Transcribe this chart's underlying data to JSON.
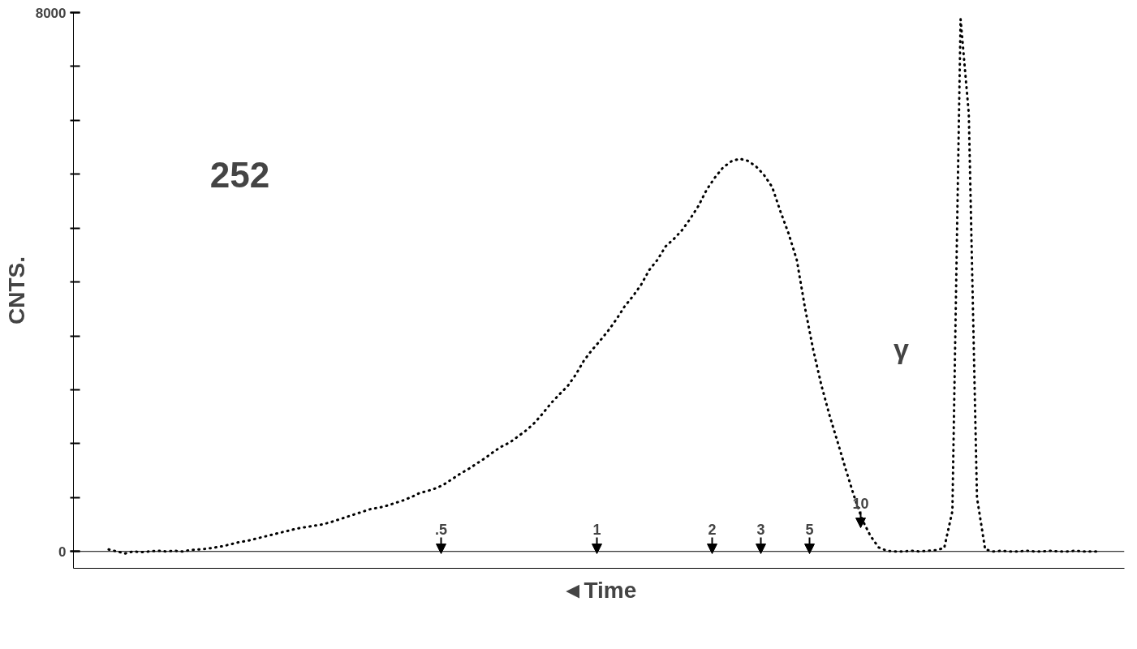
{
  "chart_data": {
    "type": "line",
    "xlabel": "◄Time",
    "ylabel": "CNTS.",
    "categories": [
      null,
      null,
      null,
      null,
      null,
      null,
      null,
      null,
      null,
      null,
      null,
      null,
      null,
      null,
      null,
      null,
      null,
      null,
      null,
      null,
      null,
      null,
      null,
      null,
      null,
      null,
      null,
      null,
      null,
      null,
      null,
      null,
      null,
      null,
      null,
      null,
      null,
      null,
      null,
      null,
      null,
      null,
      null,
      null,
      null,
      null,
      null,
      null,
      null,
      null,
      null,
      null,
      null,
      null,
      null,
      null,
      null,
      null,
      null,
      null,
      null,
      null,
      null,
      null,
      null,
      null,
      null,
      null,
      null,
      null,
      null,
      null,
      null,
      null,
      null,
      null,
      null,
      null,
      null,
      null,
      null,
      null,
      null,
      null,
      null,
      null,
      null,
      null,
      null,
      null,
      null,
      null,
      null,
      null,
      null,
      null,
      null,
      null,
      null,
      null,
      null,
      null,
      null,
      null,
      null,
      null,
      null,
      null,
      null,
      null,
      null,
      null,
      null,
      null,
      null,
      null,
      null,
      null,
      null,
      null,
      null,
      null
    ],
    "values": [
      30,
      0,
      -30,
      0,
      -10,
      0,
      10,
      0,
      10,
      0,
      20,
      30,
      40,
      60,
      80,
      110,
      140,
      160,
      190,
      220,
      250,
      280,
      310,
      340,
      360,
      380,
      400,
      430,
      470,
      510,
      550,
      590,
      630,
      650,
      680,
      720,
      760,
      810,
      870,
      900,
      940,
      1000,
      1080,
      1160,
      1230,
      1310,
      1390,
      1480,
      1560,
      1620,
      1710,
      1800,
      1910,
      2050,
      2200,
      2330,
      2450,
      2620,
      2830,
      2990,
      3130,
      3280,
      3450,
      3640,
      3790,
      3960,
      4180,
      4330,
      4530,
      4640,
      4770,
      4940,
      5130,
      5370,
      5550,
      5700,
      5790,
      5830,
      5800,
      5720,
      5590,
      5410,
      5050,
      4720,
      4330,
      3620,
      3000,
      2470,
      2020,
      1620,
      1210,
      820,
      470,
      230,
      60,
      10,
      0,
      0,
      10,
      0,
      10,
      20,
      50,
      600,
      7900,
      6500,
      800,
      30,
      0,
      10,
      0,
      0,
      10,
      0,
      0,
      10,
      0,
      0,
      10,
      0,
      0,
      0
    ],
    "color": "#000000",
    "line_style": "dotted",
    "grid": false,
    "ylim": [
      -250,
      8000
    ],
    "yticks": [
      0,
      8000
    ],
    "ref_lines": [
      {
        "axis": "y",
        "value": 0,
        "label": null
      }
    ],
    "annotations": [
      "252",
      ".5",
      "1",
      "2",
      "3",
      "5",
      "10",
      "γ"
    ]
  }
}
